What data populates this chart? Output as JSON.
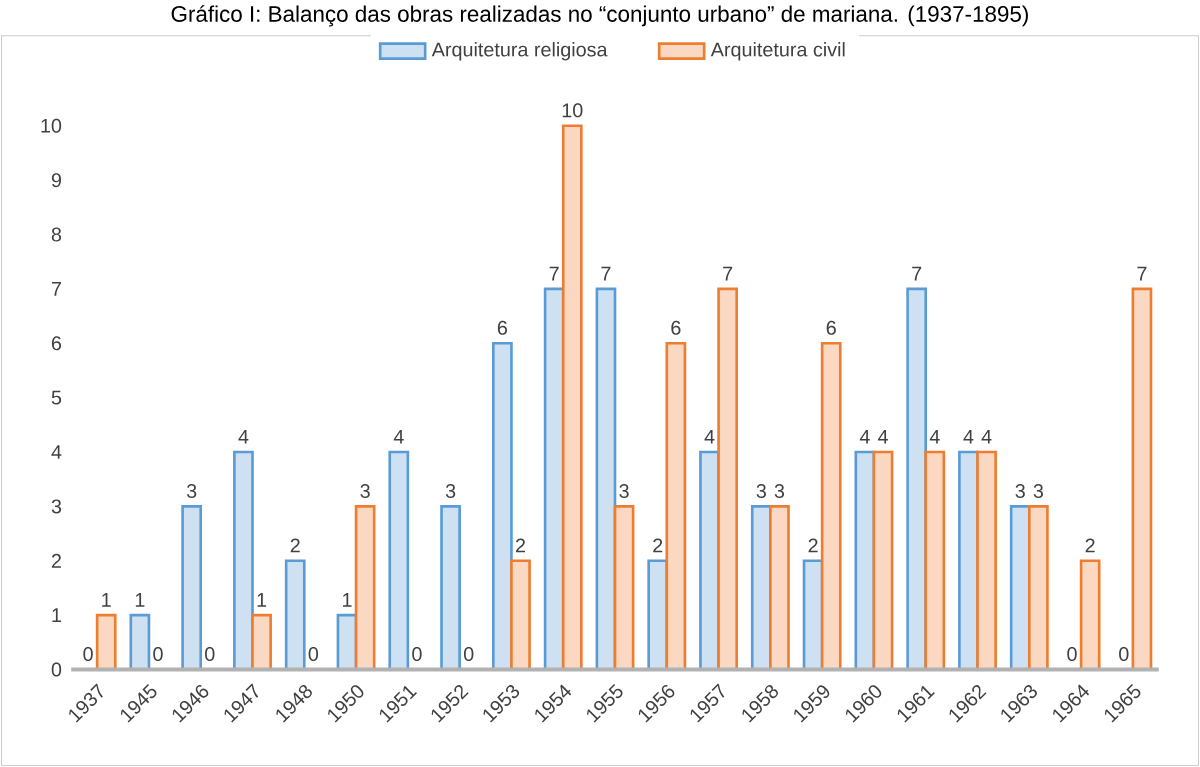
{
  "chart_data": {
    "type": "bar",
    "title": "Gráfico I: Balanço das obras realizadas no “conjunto urbano” de mariana. (1937-1895)",
    "categories": [
      "1937",
      "1945",
      "1946",
      "1947",
      "1948",
      "1950",
      "1951",
      "1952",
      "1953",
      "1954",
      "1955",
      "1956",
      "1957",
      "1958",
      "1959",
      "1960",
      "1961",
      "1962",
      "1963",
      "1964",
      "1965"
    ],
    "series": [
      {
        "name": "Arquitetura religiosa",
        "color": "#5b9bd5",
        "values": [
          0,
          1,
          3,
          4,
          2,
          1,
          4,
          3,
          6,
          7,
          7,
          2,
          4,
          3,
          2,
          4,
          7,
          4,
          3,
          0,
          0
        ]
      },
      {
        "name": "Arquitetura civil",
        "color": "#ed7d31",
        "values": [
          1,
          0,
          0,
          1,
          0,
          3,
          0,
          0,
          2,
          10,
          3,
          6,
          7,
          3,
          6,
          4,
          4,
          4,
          3,
          2,
          7
        ]
      }
    ],
    "ylim": [
      0,
      10
    ],
    "yticks": [
      0,
      1,
      2,
      3,
      4,
      5,
      6,
      7,
      8,
      9,
      10
    ],
    "grid": false,
    "legend": "top",
    "data_labels": true
  }
}
